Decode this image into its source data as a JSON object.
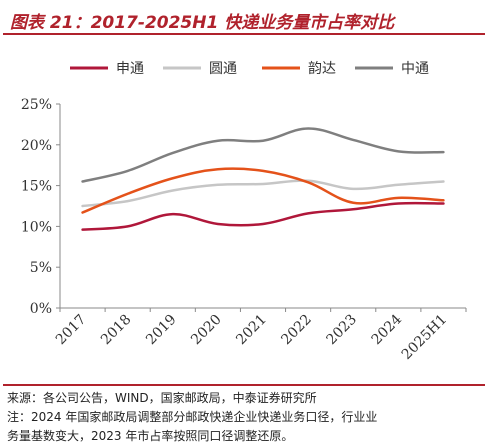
{
  "header": {
    "title": "图表 21：2017-2025H1 快递业务量市占率对比"
  },
  "chart_data": {
    "type": "line",
    "categories": [
      "2017",
      "2018",
      "2019",
      "2020",
      "2021",
      "2022",
      "2023",
      "2024",
      "2025H1"
    ],
    "series": [
      {
        "name": "申通",
        "color": "#b0173a",
        "values": [
          9.6,
          10.0,
          11.5,
          10.3,
          10.3,
          11.6,
          12.1,
          12.8,
          12.8
        ]
      },
      {
        "name": "圆通",
        "color": "#c6c6c6",
        "values": [
          12.5,
          13.1,
          14.4,
          15.1,
          15.2,
          15.6,
          14.6,
          15.1,
          15.5
        ]
      },
      {
        "name": "韵达",
        "color": "#e4521a",
        "values": [
          11.7,
          14.0,
          15.9,
          17.0,
          16.8,
          15.4,
          12.9,
          13.5,
          13.2
        ]
      },
      {
        "name": "中通",
        "color": "#7f7f7f",
        "values": [
          15.5,
          16.8,
          19.0,
          20.5,
          20.5,
          22.0,
          20.6,
          19.2,
          19.1
        ]
      }
    ],
    "yticks": [
      "0%",
      "5%",
      "10%",
      "15%",
      "20%",
      "25%"
    ],
    "ytick_values": [
      0,
      5,
      10,
      15,
      20,
      25
    ],
    "ylim": [
      0,
      25
    ],
    "legend_position": "top",
    "grid": false
  },
  "footer": {
    "source": "来源：各公司公告，WIND，国家邮政局，中泰证券研究所",
    "note_line1": "注：2024 年国家邮政局调整部分邮政快递企业快递业务口径，行业业",
    "note_line2": "务量基数变大，2023 年市占率按照同口径调整还原。"
  }
}
